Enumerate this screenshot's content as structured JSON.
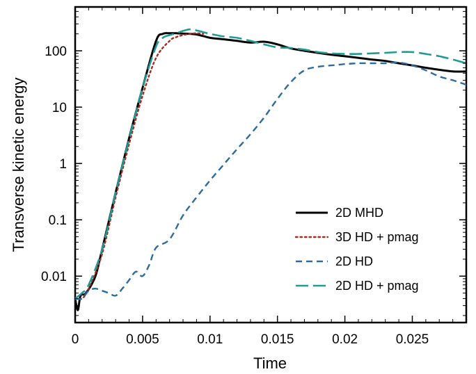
{
  "chart_data": {
    "type": "line",
    "title": "",
    "xlabel": "Time",
    "ylabel": "Transverse kinetic energy",
    "xscale": "linear",
    "yscale": "log",
    "xlim": [
      0,
      0.029
    ],
    "ylim": [
      0.0015,
      600
    ],
    "grid": false,
    "legend_position": "bottom-right",
    "x_ticks": [
      {
        "value": 0,
        "label": "0"
      },
      {
        "value": 0.005,
        "label": "0.005"
      },
      {
        "value": 0.01,
        "label": "0.01"
      },
      {
        "value": 0.015,
        "label": "0.015"
      },
      {
        "value": 0.02,
        "label": "0.02"
      },
      {
        "value": 0.025,
        "label": "0.025"
      }
    ],
    "y_ticks": [
      {
        "value": 0.01,
        "label": "0.01"
      },
      {
        "value": 0.1,
        "label": "0.1"
      },
      {
        "value": 1,
        "label": "1"
      },
      {
        "value": 10,
        "label": "10"
      },
      {
        "value": 100,
        "label": "100"
      }
    ],
    "series": [
      {
        "name": "2D MHD",
        "color": "#000000",
        "style": "solid",
        "x": [
          0,
          0.0002,
          0.0004,
          0.0008,
          0.0015,
          0.002,
          0.003,
          0.004,
          0.005,
          0.006,
          0.0065,
          0.007,
          0.0075,
          0.008,
          0.009,
          0.01,
          0.011,
          0.012,
          0.013,
          0.014,
          0.015,
          0.016,
          0.017,
          0.018,
          0.019,
          0.02,
          0.021,
          0.022,
          0.023,
          0.024,
          0.025,
          0.026,
          0.027,
          0.028,
          0.029
        ],
        "y": [
          0.004,
          0.0025,
          0.0045,
          0.005,
          0.01,
          0.03,
          0.3,
          2.8,
          22,
          150,
          200,
          205,
          205,
          202,
          195,
          170,
          160,
          150,
          140,
          145,
          130,
          110,
          100,
          92,
          85,
          80,
          75,
          70,
          66,
          60,
          55,
          50,
          46,
          43,
          43
        ]
      },
      {
        "name": "3D HD + pmag",
        "color": "#a52a1f",
        "style": "dotted",
        "x": [
          0,
          0.0005,
          0.001,
          0.002,
          0.003,
          0.004,
          0.005,
          0.006,
          0.007,
          0.0075,
          0.008,
          0.0085,
          0.009,
          0.0095
        ],
        "y": [
          0.004,
          0.004,
          0.006,
          0.025,
          0.25,
          2.2,
          16,
          75,
          150,
          175,
          190,
          200,
          205,
          200
        ]
      },
      {
        "name": "2D HD",
        "color": "#2f6b9a",
        "style": "dashed",
        "x": [
          0,
          0.0005,
          0.001,
          0.0015,
          0.002,
          0.0025,
          0.003,
          0.0035,
          0.004,
          0.0045,
          0.005,
          0.0055,
          0.006,
          0.007,
          0.008,
          0.009,
          0.01,
          0.011,
          0.012,
          0.013,
          0.014,
          0.015,
          0.016,
          0.017,
          0.018,
          0.019,
          0.02,
          0.021,
          0.022,
          0.023,
          0.024,
          0.025,
          0.026,
          0.027,
          0.028,
          0.029
        ],
        "y": [
          0.004,
          0.004,
          0.0055,
          0.006,
          0.0055,
          0.005,
          0.0045,
          0.006,
          0.0085,
          0.012,
          0.01,
          0.016,
          0.032,
          0.045,
          0.12,
          0.25,
          0.5,
          0.95,
          1.8,
          3.3,
          6.5,
          14,
          28,
          45,
          52,
          55,
          58,
          60,
          60,
          60,
          62,
          55,
          45,
          35,
          30,
          25
        ]
      },
      {
        "name": "2D HD + pmag",
        "color": "#1f9a95",
        "style": "long-dashed",
        "x": [
          0,
          0.0005,
          0.001,
          0.002,
          0.003,
          0.004,
          0.005,
          0.006,
          0.0065,
          0.007,
          0.0075,
          0.008,
          0.0085,
          0.009,
          0.01,
          0.011,
          0.012,
          0.013,
          0.014,
          0.015,
          0.016,
          0.017,
          0.018,
          0.019,
          0.02,
          0.021,
          0.022,
          0.023,
          0.024,
          0.025,
          0.026,
          0.027,
          0.028,
          0.029
        ],
        "y": [
          0.004,
          0.005,
          0.007,
          0.03,
          0.3,
          2.7,
          22,
          120,
          170,
          190,
          205,
          225,
          240,
          230,
          200,
          180,
          170,
          150,
          130,
          115,
          112,
          105,
          95,
          90,
          88,
          88,
          90,
          92,
          95,
          95,
          88,
          80,
          70,
          60
        ]
      }
    ]
  }
}
